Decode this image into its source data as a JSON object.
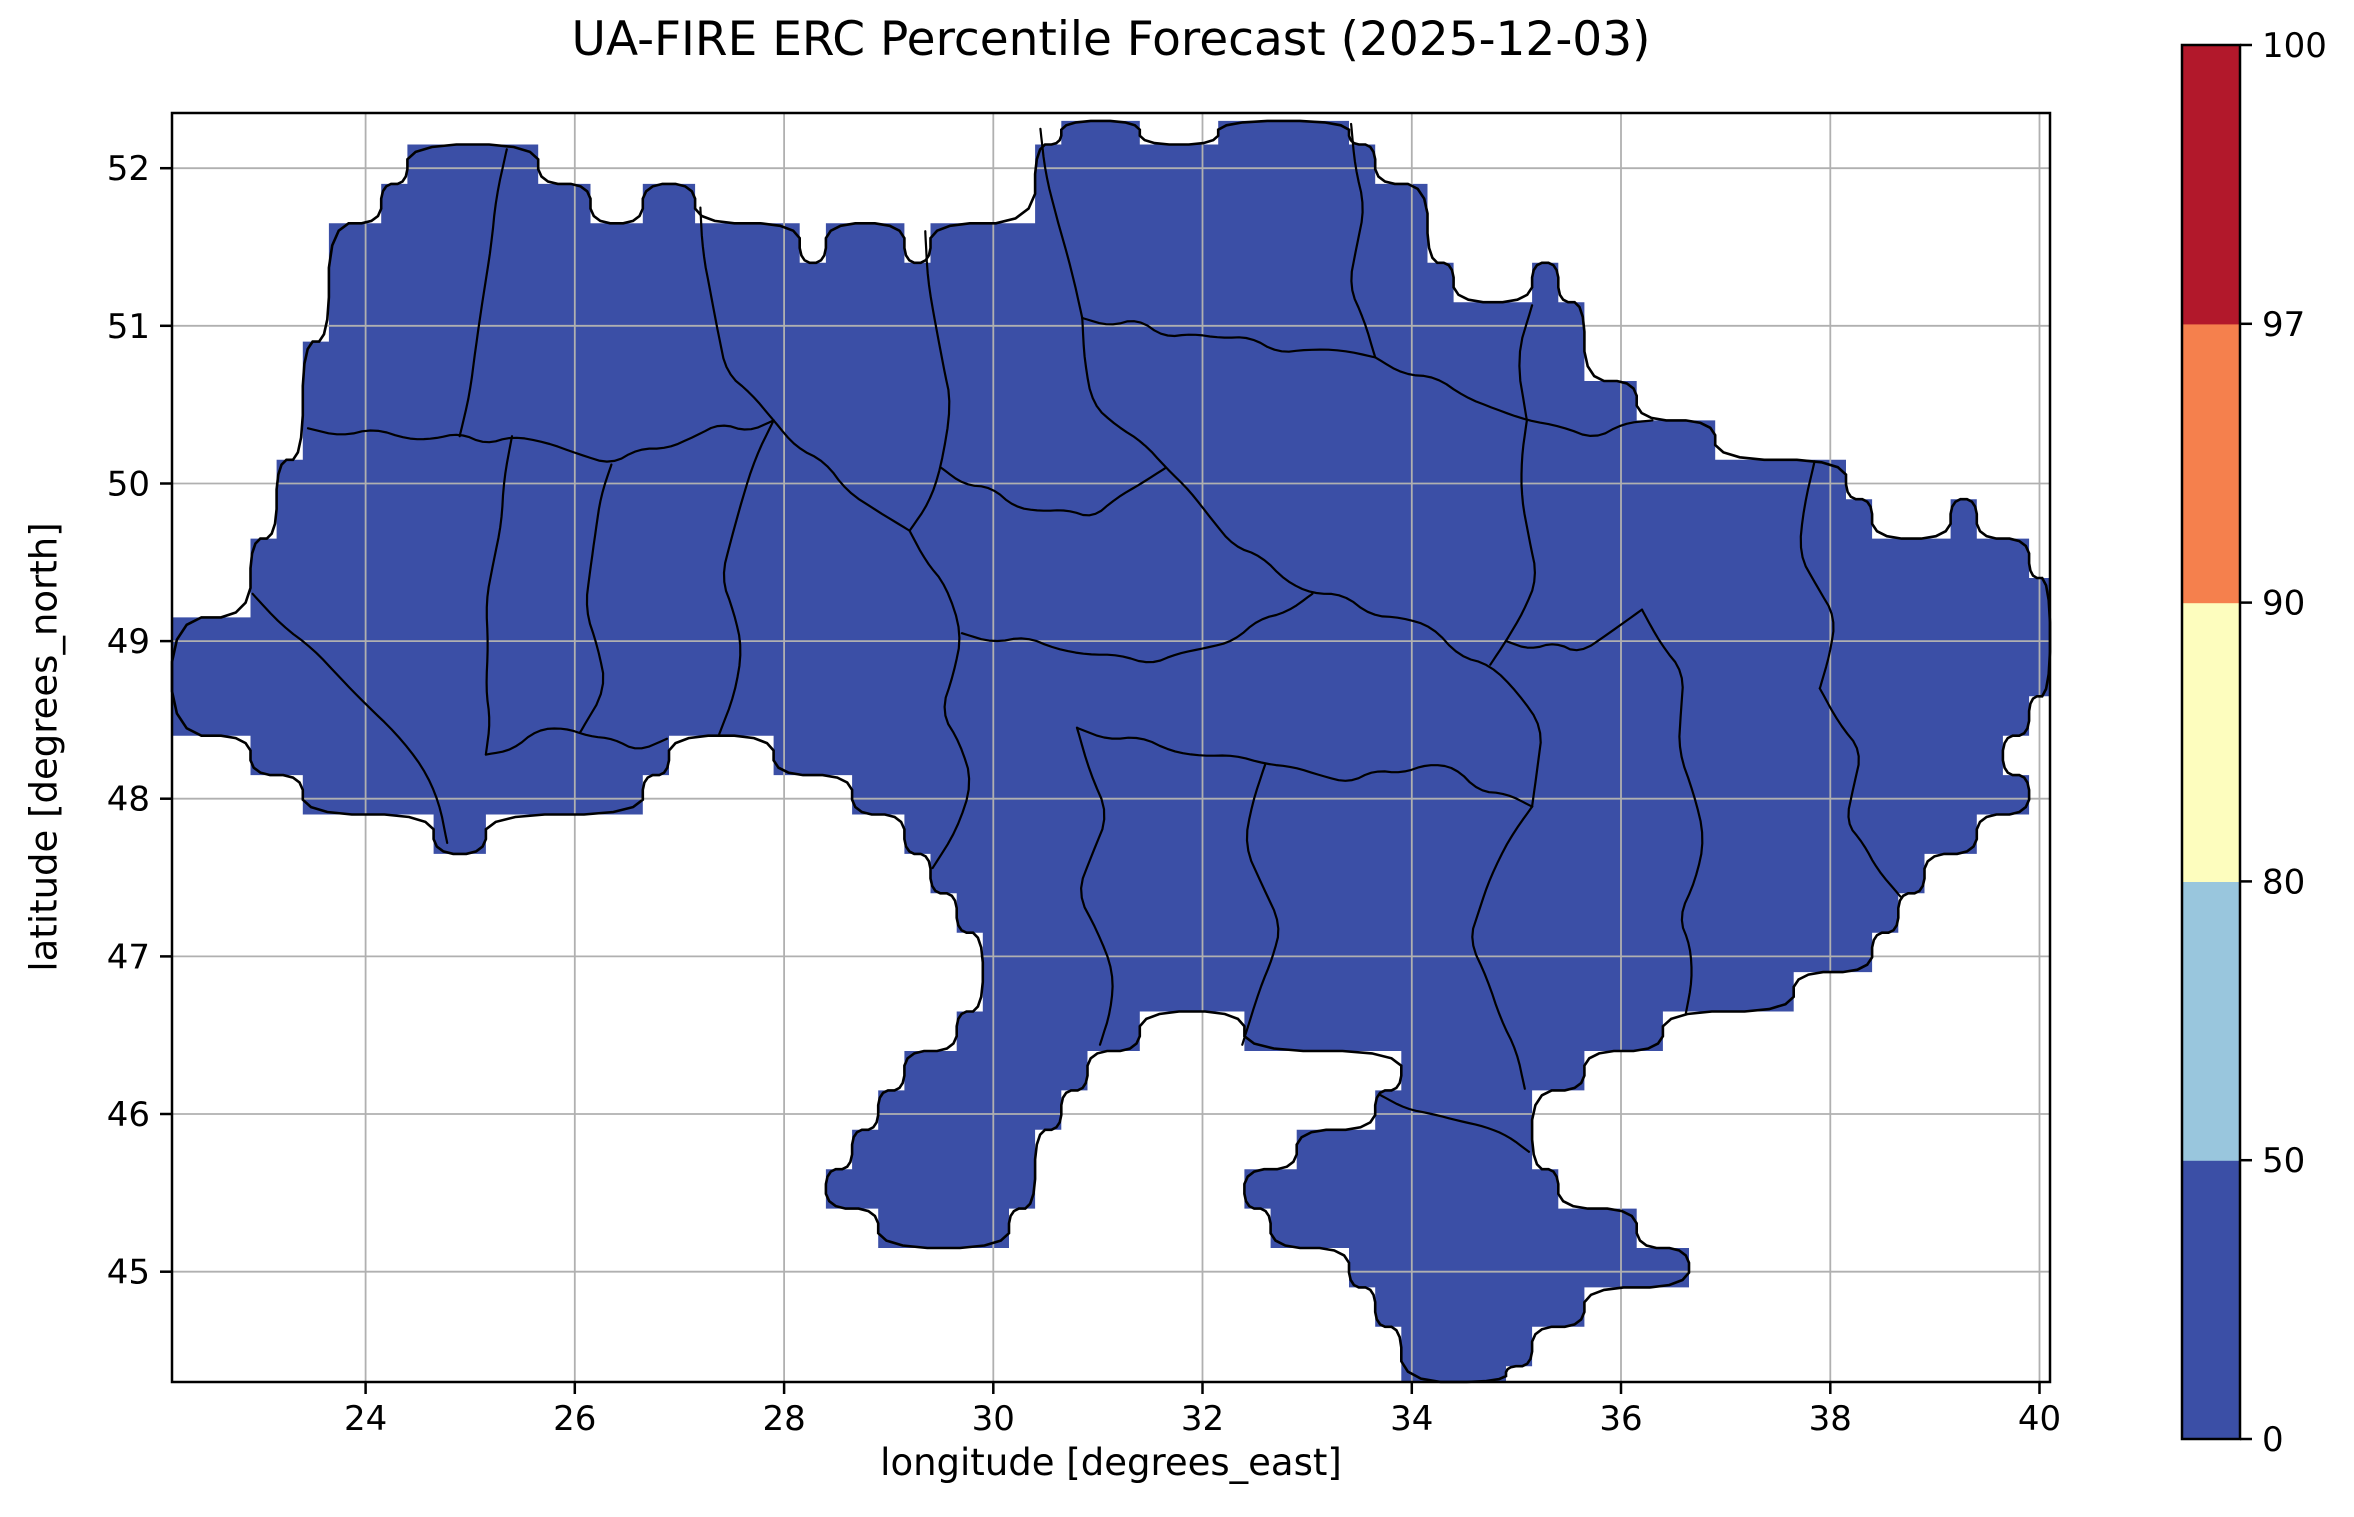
{
  "title": "UA-FIRE ERC Percentile Forecast (2025-12-03)",
  "axes": {
    "xlabel": "longitude [degrees_east]",
    "ylabel": "latitude [degrees_north]",
    "x_ticks": [
      24,
      26,
      28,
      30,
      32,
      34,
      36,
      38,
      40
    ],
    "y_ticks": [
      45,
      46,
      47,
      48,
      49,
      50,
      51,
      52
    ],
    "xlim": [
      22.15,
      40.1
    ],
    "ylim": [
      44.3,
      52.35
    ],
    "grid": true,
    "grid_color": "#b0b0b0",
    "frame_color": "#000000"
  },
  "colorbar": {
    "levels": [
      0,
      50,
      80,
      90,
      97,
      100
    ],
    "tick_labels": [
      "0",
      "50",
      "80",
      "90",
      "97",
      "100"
    ],
    "segment_colors": [
      "#3b4fa6",
      "#99c6dd",
      "#fdfdbe",
      "#f5804d",
      "#b2182b"
    ],
    "orientation": "vertical"
  },
  "chart_data": {
    "type": "heatmap",
    "title": "UA-FIRE ERC Percentile Forecast (2025-12-03)",
    "xlabel": "longitude [degrees_east]",
    "ylabel": "latitude [degrees_north]",
    "xlim": [
      22.15,
      40.1
    ],
    "ylim": [
      44.3,
      52.35
    ],
    "colorbar_levels": [
      0,
      50,
      80,
      90,
      97,
      100
    ],
    "value_bin_shown": [
      0,
      50
    ],
    "fill_color": "#3b4fa6",
    "note": "Every gridded forecast cell over Ukraine falls in the lowest percentile bin (0-50), so the whole country is the uniform dark-blue class; national and oblast administrative boundaries are drawn in black on top.",
    "map_outline": [
      [
        22.15,
        48.4
      ],
      [
        22.15,
        49.15
      ],
      [
        22.9,
        49.15
      ],
      [
        22.9,
        49.65
      ],
      [
        23.15,
        49.65
      ],
      [
        23.15,
        50.15
      ],
      [
        23.4,
        50.15
      ],
      [
        23.4,
        50.9
      ],
      [
        23.65,
        50.9
      ],
      [
        23.65,
        51.65
      ],
      [
        24.15,
        51.65
      ],
      [
        24.15,
        51.9
      ],
      [
        24.4,
        51.9
      ],
      [
        24.4,
        52.15
      ],
      [
        25.65,
        52.15
      ],
      [
        25.65,
        51.9
      ],
      [
        26.15,
        51.9
      ],
      [
        26.15,
        51.65
      ],
      [
        26.65,
        51.65
      ],
      [
        26.65,
        51.9
      ],
      [
        27.15,
        51.9
      ],
      [
        27.15,
        51.65
      ],
      [
        28.15,
        51.65
      ],
      [
        28.15,
        51.4
      ],
      [
        28.4,
        51.4
      ],
      [
        28.4,
        51.65
      ],
      [
        29.15,
        51.65
      ],
      [
        29.15,
        51.4
      ],
      [
        29.4,
        51.4
      ],
      [
        29.4,
        51.65
      ],
      [
        30.4,
        51.65
      ],
      [
        30.4,
        52.15
      ],
      [
        30.65,
        52.15
      ],
      [
        30.65,
        52.3
      ],
      [
        31.4,
        52.3
      ],
      [
        31.4,
        52.15
      ],
      [
        32.15,
        52.15
      ],
      [
        32.15,
        52.3
      ],
      [
        33.4,
        52.3
      ],
      [
        33.4,
        52.15
      ],
      [
        33.65,
        52.15
      ],
      [
        33.65,
        51.9
      ],
      [
        34.15,
        51.9
      ],
      [
        34.15,
        51.4
      ],
      [
        34.4,
        51.4
      ],
      [
        34.4,
        51.15
      ],
      [
        35.15,
        51.15
      ],
      [
        35.15,
        51.4
      ],
      [
        35.4,
        51.4
      ],
      [
        35.4,
        51.15
      ],
      [
        35.65,
        51.15
      ],
      [
        35.65,
        50.65
      ],
      [
        36.15,
        50.65
      ],
      [
        36.15,
        50.4
      ],
      [
        36.9,
        50.4
      ],
      [
        36.9,
        50.15
      ],
      [
        38.15,
        50.15
      ],
      [
        38.15,
        49.9
      ],
      [
        38.4,
        49.9
      ],
      [
        38.4,
        49.65
      ],
      [
        39.15,
        49.65
      ],
      [
        39.15,
        49.9
      ],
      [
        39.4,
        49.9
      ],
      [
        39.4,
        49.65
      ],
      [
        39.9,
        49.65
      ],
      [
        39.9,
        49.4
      ],
      [
        40.1,
        49.4
      ],
      [
        40.1,
        48.65
      ],
      [
        39.9,
        48.65
      ],
      [
        39.9,
        48.4
      ],
      [
        39.65,
        48.4
      ],
      [
        39.65,
        48.15
      ],
      [
        39.9,
        48.15
      ],
      [
        39.9,
        47.9
      ],
      [
        39.4,
        47.9
      ],
      [
        39.4,
        47.65
      ],
      [
        38.9,
        47.65
      ],
      [
        38.9,
        47.4
      ],
      [
        38.65,
        47.4
      ],
      [
        38.65,
        47.15
      ],
      [
        38.4,
        47.15
      ],
      [
        38.4,
        46.9
      ],
      [
        37.65,
        46.9
      ],
      [
        37.65,
        46.65
      ],
      [
        36.4,
        46.65
      ],
      [
        36.4,
        46.4
      ],
      [
        35.65,
        46.4
      ],
      [
        35.65,
        46.15
      ],
      [
        35.15,
        46.15
      ],
      [
        35.15,
        45.65
      ],
      [
        35.4,
        45.65
      ],
      [
        35.4,
        45.4
      ],
      [
        36.15,
        45.4
      ],
      [
        36.15,
        45.15
      ],
      [
        36.65,
        45.15
      ],
      [
        36.65,
        44.9
      ],
      [
        35.65,
        44.9
      ],
      [
        35.65,
        44.65
      ],
      [
        35.15,
        44.65
      ],
      [
        35.15,
        44.4
      ],
      [
        34.9,
        44.4
      ],
      [
        34.9,
        44.3
      ],
      [
        33.9,
        44.3
      ],
      [
        33.9,
        44.65
      ],
      [
        33.65,
        44.65
      ],
      [
        33.65,
        44.9
      ],
      [
        33.4,
        44.9
      ],
      [
        33.4,
        45.15
      ],
      [
        32.65,
        45.15
      ],
      [
        32.65,
        45.4
      ],
      [
        32.4,
        45.4
      ],
      [
        32.4,
        45.65
      ],
      [
        32.9,
        45.65
      ],
      [
        32.9,
        45.9
      ],
      [
        33.65,
        45.9
      ],
      [
        33.65,
        46.15
      ],
      [
        33.9,
        46.15
      ],
      [
        33.9,
        46.4
      ],
      [
        32.4,
        46.4
      ],
      [
        32.4,
        46.65
      ],
      [
        31.4,
        46.65
      ],
      [
        31.4,
        46.4
      ],
      [
        30.9,
        46.4
      ],
      [
        30.9,
        46.15
      ],
      [
        30.65,
        46.15
      ],
      [
        30.65,
        45.9
      ],
      [
        30.4,
        45.9
      ],
      [
        30.4,
        45.4
      ],
      [
        30.15,
        45.4
      ],
      [
        30.15,
        45.15
      ],
      [
        28.9,
        45.15
      ],
      [
        28.9,
        45.4
      ],
      [
        28.4,
        45.4
      ],
      [
        28.4,
        45.65
      ],
      [
        28.65,
        45.65
      ],
      [
        28.65,
        45.9
      ],
      [
        28.9,
        45.9
      ],
      [
        28.9,
        46.15
      ],
      [
        29.15,
        46.15
      ],
      [
        29.15,
        46.4
      ],
      [
        29.65,
        46.4
      ],
      [
        29.65,
        46.65
      ],
      [
        29.9,
        46.65
      ],
      [
        29.9,
        47.15
      ],
      [
        29.65,
        47.15
      ],
      [
        29.65,
        47.4
      ],
      [
        29.4,
        47.4
      ],
      [
        29.4,
        47.65
      ],
      [
        29.15,
        47.65
      ],
      [
        29.15,
        47.9
      ],
      [
        28.65,
        47.9
      ],
      [
        28.65,
        48.15
      ],
      [
        27.9,
        48.15
      ],
      [
        27.9,
        48.4
      ],
      [
        26.9,
        48.4
      ],
      [
        26.9,
        48.15
      ],
      [
        26.65,
        48.15
      ],
      [
        26.65,
        47.9
      ],
      [
        25.15,
        47.9
      ],
      [
        25.15,
        47.65
      ],
      [
        24.65,
        47.65
      ],
      [
        24.65,
        47.9
      ],
      [
        23.4,
        47.9
      ],
      [
        23.4,
        48.15
      ],
      [
        22.9,
        48.15
      ],
      [
        22.9,
        48.4
      ]
    ],
    "region_borders": [
      [
        [
          25.35,
          52.12
        ],
        [
          25.2,
          51.5
        ],
        [
          25.05,
          50.85
        ],
        [
          24.9,
          50.3
        ]
      ],
      [
        [
          23.45,
          50.35
        ],
        [
          24.4,
          50.28
        ],
        [
          25.4,
          50.3
        ],
        [
          26.35,
          50.12
        ],
        [
          27.15,
          50.3
        ],
        [
          27.9,
          50.4
        ]
      ],
      [
        [
          27.2,
          51.75
        ],
        [
          27.3,
          51.2
        ],
        [
          27.45,
          50.7
        ],
        [
          27.9,
          50.4
        ]
      ],
      [
        [
          29.35,
          51.6
        ],
        [
          29.45,
          51.0
        ],
        [
          29.6,
          50.5
        ],
        [
          29.5,
          50.1
        ],
        [
          29.2,
          49.7
        ]
      ],
      [
        [
          30.45,
          52.25
        ],
        [
          30.6,
          51.7
        ],
        [
          30.75,
          51.35
        ],
        [
          30.85,
          51.05
        ]
      ],
      [
        [
          30.85,
          51.05
        ],
        [
          31.9,
          50.95
        ],
        [
          33.0,
          50.85
        ],
        [
          33.65,
          50.8
        ]
      ],
      [
        [
          33.42,
          52.28
        ],
        [
          33.55,
          51.75
        ],
        [
          33.4,
          51.25
        ],
        [
          33.65,
          50.8
        ]
      ],
      [
        [
          33.65,
          50.8
        ],
        [
          34.5,
          50.55
        ],
        [
          35.1,
          50.4
        ],
        [
          35.75,
          50.28
        ],
        [
          36.3,
          50.4
        ]
      ],
      [
        [
          35.15,
          51.13
        ],
        [
          35.0,
          50.8
        ],
        [
          35.1,
          50.4
        ]
      ],
      [
        [
          35.1,
          50.4
        ],
        [
          35.05,
          49.9
        ],
        [
          35.2,
          49.4
        ],
        [
          34.9,
          49.0
        ],
        [
          34.75,
          48.85
        ]
      ],
      [
        [
          37.85,
          50.14
        ],
        [
          37.7,
          49.55
        ],
        [
          38.05,
          49.15
        ],
        [
          37.9,
          48.7
        ]
      ],
      [
        [
          37.9,
          48.7
        ],
        [
          38.3,
          48.3
        ],
        [
          38.15,
          47.85
        ],
        [
          38.45,
          47.55
        ],
        [
          38.67,
          47.38
        ]
      ],
      [
        [
          34.9,
          49.0
        ],
        [
          35.6,
          48.92
        ],
        [
          36.2,
          49.2
        ]
      ],
      [
        [
          36.2,
          49.2
        ],
        [
          36.6,
          48.8
        ],
        [
          36.55,
          48.3
        ],
        [
          36.8,
          47.75
        ],
        [
          36.55,
          47.25
        ],
        [
          36.68,
          46.85
        ],
        [
          36.62,
          46.64
        ]
      ],
      [
        [
          30.85,
          51.05
        ],
        [
          30.95,
          50.5
        ],
        [
          31.65,
          50.1
        ],
        [
          32.3,
          49.6
        ],
        [
          33.05,
          49.3
        ],
        [
          33.9,
          49.15
        ],
        [
          34.75,
          48.85
        ],
        [
          35.25,
          48.45
        ],
        [
          35.15,
          47.95
        ]
      ],
      [
        [
          29.5,
          50.1
        ],
        [
          30.2,
          49.85
        ],
        [
          30.95,
          49.78
        ],
        [
          31.65,
          50.1
        ]
      ],
      [
        [
          27.9,
          50.4
        ],
        [
          27.6,
          49.9
        ],
        [
          27.4,
          49.4
        ],
        [
          27.6,
          48.95
        ],
        [
          27.38,
          48.41
        ]
      ],
      [
        [
          27.9,
          50.4
        ],
        [
          28.6,
          49.95
        ],
        [
          29.2,
          49.7
        ]
      ],
      [
        [
          26.35,
          50.12
        ],
        [
          26.2,
          49.7
        ],
        [
          26.1,
          49.2
        ],
        [
          26.3,
          48.7
        ],
        [
          26.05,
          48.42
        ]
      ],
      [
        [
          25.15,
          48.28
        ],
        [
          25.9,
          48.45
        ],
        [
          26.6,
          48.3
        ],
        [
          26.88,
          48.38
        ]
      ],
      [
        [
          25.4,
          50.3
        ],
        [
          25.3,
          49.75
        ],
        [
          25.15,
          49.25
        ],
        [
          25.15,
          48.7
        ],
        [
          25.15,
          48.28
        ]
      ],
      [
        [
          22.92,
          49.3
        ],
        [
          23.5,
          48.95
        ],
        [
          24.0,
          48.6
        ],
        [
          24.55,
          48.2
        ],
        [
          24.78,
          47.72
        ]
      ],
      [
        [
          29.7,
          49.05
        ],
        [
          30.6,
          48.95
        ],
        [
          31.5,
          48.85
        ],
        [
          32.3,
          49.0
        ],
        [
          33.05,
          49.3
        ]
      ],
      [
        [
          29.2,
          49.7
        ],
        [
          29.55,
          49.35
        ],
        [
          29.7,
          49.05
        ],
        [
          29.5,
          48.55
        ],
        [
          29.8,
          48.1
        ],
        [
          29.42,
          47.56
        ]
      ],
      [
        [
          30.8,
          48.45
        ],
        [
          31.7,
          48.3
        ],
        [
          32.6,
          48.22
        ],
        [
          33.4,
          48.1
        ],
        [
          34.15,
          48.22
        ],
        [
          35.15,
          47.95
        ]
      ],
      [
        [
          32.6,
          48.22
        ],
        [
          32.4,
          47.7
        ],
        [
          32.75,
          47.2
        ],
        [
          32.55,
          46.8
        ],
        [
          32.38,
          46.44
        ]
      ],
      [
        [
          35.15,
          47.95
        ],
        [
          34.75,
          47.5
        ],
        [
          34.55,
          47.1
        ],
        [
          34.85,
          46.6
        ],
        [
          35.08,
          46.16
        ]
      ],
      [
        [
          30.8,
          48.45
        ],
        [
          31.1,
          47.9
        ],
        [
          30.8,
          47.4
        ],
        [
          31.15,
          46.9
        ],
        [
          31.02,
          46.44
        ]
      ],
      [
        [
          33.7,
          46.12
        ],
        [
          34.2,
          46.0
        ],
        [
          34.7,
          45.92
        ],
        [
          35.12,
          45.76
        ]
      ]
    ]
  }
}
